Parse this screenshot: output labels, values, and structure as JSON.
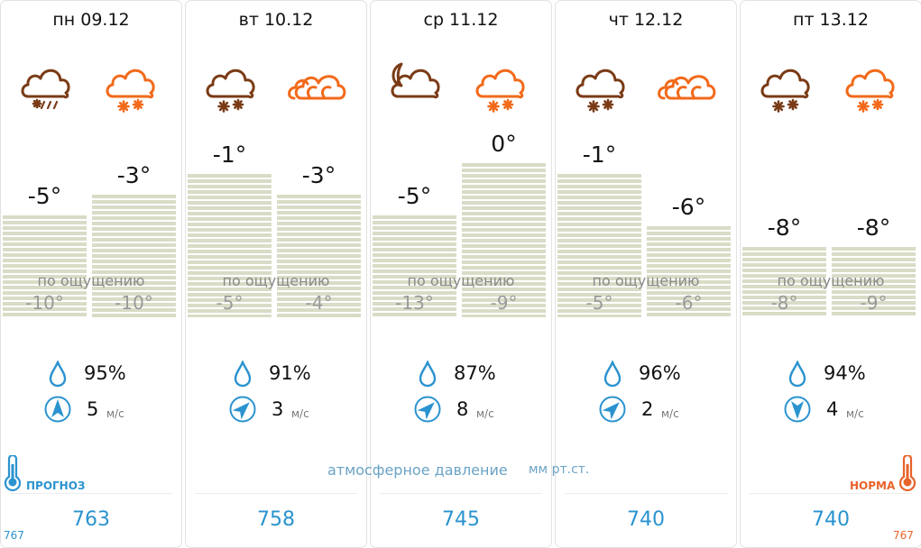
{
  "days": [
    {
      "date": "пн 09.12",
      "icon_day": "rain-snow-cloud-icon",
      "icon_night": "snow-cloud-icon",
      "temp_day": "-5°",
      "temp_night": "-3°",
      "feels_day": "-10°",
      "feels_night": "-10°",
      "temp_day_value": -5,
      "temp_night_value": -3,
      "humidity": "95%",
      "wind_speed": "5",
      "wind_unit": "м/с",
      "wind_direction": "north",
      "pressure": "763"
    },
    {
      "date": "вт 10.12",
      "icon_day": "snow-cloud-icon",
      "icon_night": "cloudy-icon",
      "temp_day": "-1°",
      "temp_night": "-3°",
      "feels_day": "-5°",
      "feels_night": "-4°",
      "temp_day_value": -1,
      "temp_night_value": -3,
      "humidity": "91%",
      "wind_speed": "3",
      "wind_unit": "м/с",
      "wind_direction": "north-east",
      "pressure": "758"
    },
    {
      "date": "ср 11.12",
      "icon_day": "moon-cloud-icon",
      "icon_night": "snow-cloud-icon",
      "temp_day": "-5°",
      "temp_night": "0°",
      "feels_day": "-13°",
      "feels_night": "-9°",
      "temp_day_value": -5,
      "temp_night_value": 0,
      "humidity": "87%",
      "wind_speed": "8",
      "wind_unit": "м/с",
      "wind_direction": "north-east",
      "pressure": "745"
    },
    {
      "date": "чт 12.12",
      "icon_day": "snow-cloud-icon",
      "icon_night": "cloudy-icon",
      "temp_day": "-1°",
      "temp_night": "-6°",
      "feels_day": "-5°",
      "feels_night": "-6°",
      "temp_day_value": -1,
      "temp_night_value": -6,
      "humidity": "96%",
      "wind_speed": "2",
      "wind_unit": "м/с",
      "wind_direction": "north-east",
      "pressure": "740"
    },
    {
      "date": "пт 13.12",
      "icon_day": "snow-cloud-icon",
      "icon_night": "snow-cloud-icon",
      "temp_day": "-8°",
      "temp_night": "-8°",
      "feels_day": "-8°",
      "feels_night": "-9°",
      "temp_day_value": -8,
      "temp_night_value": -8,
      "humidity": "94%",
      "wind_speed": "4",
      "wind_unit": "м/с",
      "wind_direction": "south",
      "pressure": "740"
    }
  ],
  "feels_like_label": "по ощущению",
  "pressure_label": "атмосферное давление",
  "pressure_unit": "мм рт.ст.",
  "forecast_label": "ПРОГНОЗ",
  "norm_label": "НОРМА",
  "pressure_left_value": "767",
  "pressure_right_value": "767",
  "colors": {
    "day_icon": "#7a3b16",
    "night_icon": "#f26a1b",
    "humidity": "#2b93cf",
    "pressure": "#2b93cf",
    "bar": "#d9dcc6",
    "norm": "#e8632a"
  }
}
